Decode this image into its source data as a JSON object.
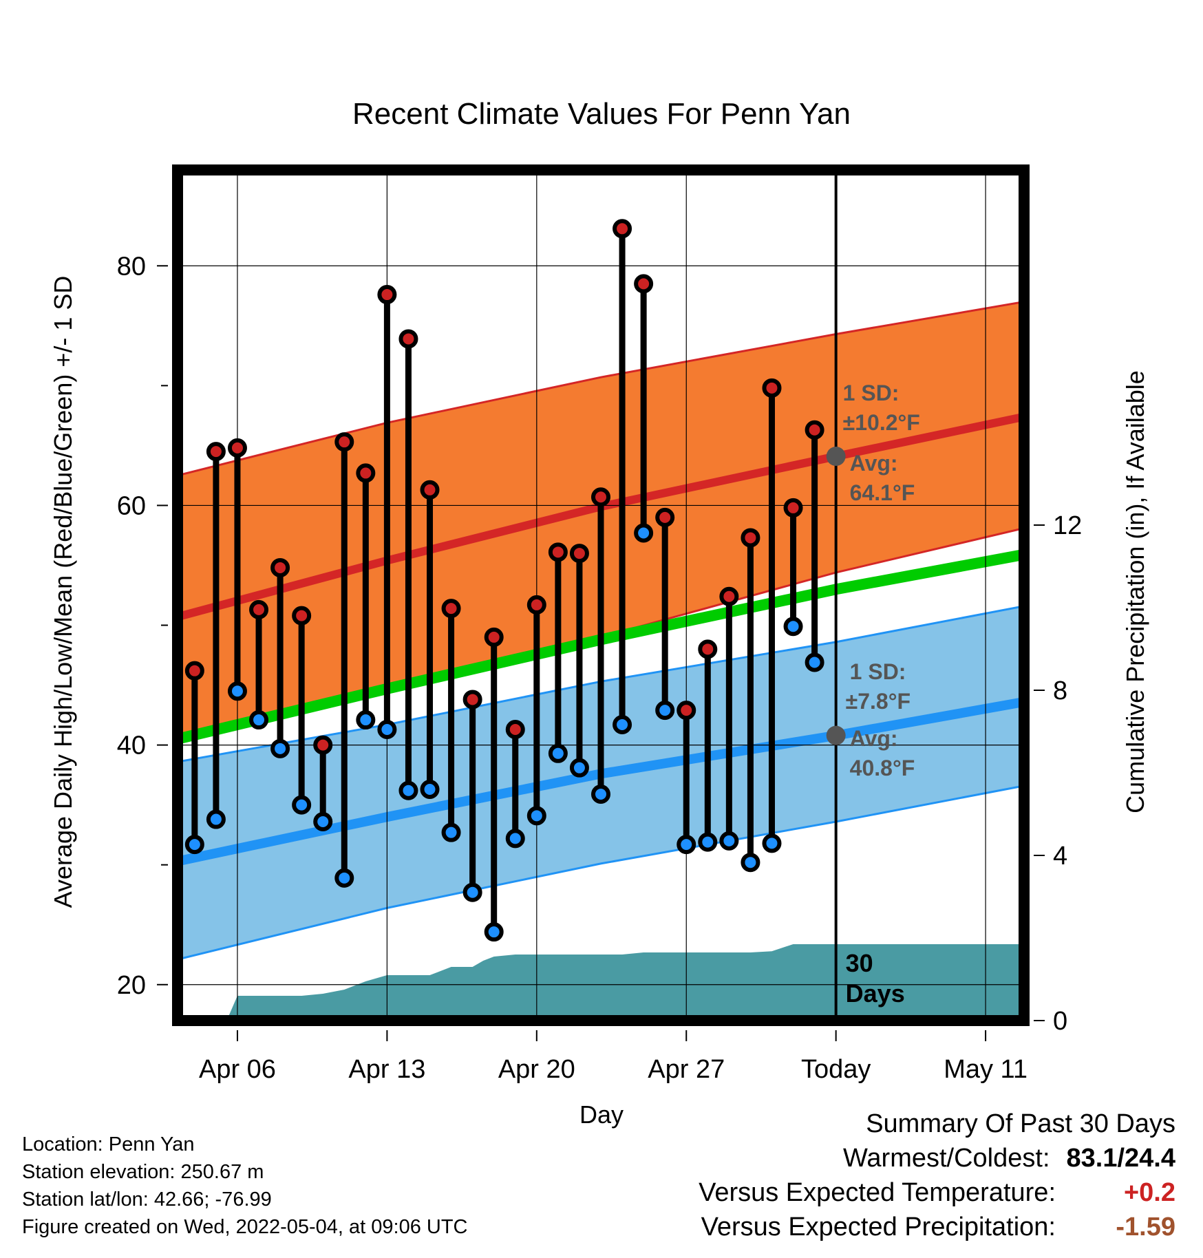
{
  "chart_data": {
    "type": "line",
    "title": "Recent Climate Values For Penn Yan",
    "xlabel": "Day",
    "ylabel": "Average Daily High/Low/Mean (Red/Blue/Green) +/- 1 SD",
    "y2label": "Cumulative Precipitation (in), If Available",
    "ylim": [
      17,
      88
    ],
    "y2lim": [
      0,
      20.6
    ],
    "xlim": [
      0.2,
      39.8
    ],
    "yticks": [
      20,
      40,
      60,
      80
    ],
    "y2ticks": [
      0,
      4,
      8,
      12
    ],
    "xticks": [
      {
        "x": 3,
        "label": "Apr 06"
      },
      {
        "x": 10,
        "label": "Apr 13"
      },
      {
        "x": 17,
        "label": "Apr 20"
      },
      {
        "x": 24,
        "label": "Apr 27"
      },
      {
        "x": 31,
        "label": "Today"
      },
      {
        "x": 38,
        "label": "May 11"
      }
    ],
    "today_x": 31,
    "normal_high": {
      "x": [
        0.2,
        10,
        20,
        31,
        39.8
      ],
      "mean": [
        50.7,
        55.4,
        59.9,
        64.1,
        67.4
      ],
      "upper": [
        62.5,
        66.9,
        70.7,
        74.3,
        77.0
      ],
      "lower": [
        40.4,
        44.6,
        49.0,
        54.4,
        58.1
      ]
    },
    "normal_low": {
      "x": [
        0.2,
        10,
        20,
        31,
        39.8
      ],
      "mean": [
        30.3,
        34.0,
        37.6,
        40.8,
        43.6
      ],
      "upper": [
        38.6,
        41.7,
        45.3,
        48.6,
        51.6
      ],
      "lower": [
        22.1,
        26.4,
        30.1,
        33.6,
        36.6
      ]
    },
    "normal_mean": {
      "x": [
        0.2,
        10,
        20,
        31,
        39.8
      ],
      "values": [
        40.5,
        44.7,
        48.8,
        53.0,
        55.9
      ]
    },
    "daily": [
      {
        "x": 1,
        "high": 46.2,
        "low": 31.7
      },
      {
        "x": 2,
        "high": 64.5,
        "low": 33.8
      },
      {
        "x": 3,
        "high": 64.8,
        "low": 44.5
      },
      {
        "x": 4,
        "high": 51.3,
        "low": 42.1
      },
      {
        "x": 5,
        "high": 54.8,
        "low": 39.7
      },
      {
        "x": 6,
        "high": 50.8,
        "low": 35.0
      },
      {
        "x": 7,
        "high": 40.0,
        "low": 33.6
      },
      {
        "x": 8,
        "high": 65.3,
        "low": 28.9
      },
      {
        "x": 9,
        "high": 62.7,
        "low": 42.1
      },
      {
        "x": 10,
        "high": 77.6,
        "low": 41.3
      },
      {
        "x": 11,
        "high": 73.9,
        "low": 36.2
      },
      {
        "x": 12,
        "high": 61.3,
        "low": 36.3
      },
      {
        "x": 13,
        "high": 51.4,
        "low": 32.7
      },
      {
        "x": 14,
        "high": 43.8,
        "low": 27.7
      },
      {
        "x": 15,
        "high": 49.0,
        "low": 24.4
      },
      {
        "x": 16,
        "high": 41.3,
        "low": 32.2
      },
      {
        "x": 17,
        "high": 51.7,
        "low": 34.1
      },
      {
        "x": 18,
        "high": 56.1,
        "low": 39.3
      },
      {
        "x": 19,
        "high": 56.0,
        "low": 38.1
      },
      {
        "x": 20,
        "high": 60.7,
        "low": 35.9
      },
      {
        "x": 21,
        "high": 83.1,
        "low": 41.7
      },
      {
        "x": 22,
        "high": 78.5,
        "low": 57.7
      },
      {
        "x": 23,
        "high": 59.0,
        "low": 42.9
      },
      {
        "x": 24,
        "high": 42.9,
        "low": 31.7
      },
      {
        "x": 25,
        "high": 48.0,
        "low": 31.9
      },
      {
        "x": 26,
        "high": 52.4,
        "low": 32.0
      },
      {
        "x": 27,
        "high": 57.3,
        "low": 30.2
      },
      {
        "x": 28,
        "high": 69.8,
        "low": 31.8
      },
      {
        "x": 29,
        "high": 59.8,
        "low": 49.9
      },
      {
        "x": 30,
        "high": 66.3,
        "low": 46.9
      }
    ],
    "precipitation": {
      "x": [
        0.2,
        2.5,
        3.0,
        4.0,
        5.0,
        6.0,
        7.0,
        8.0,
        9.0,
        10.0,
        11.0,
        12.0,
        13.0,
        14.0,
        14.5,
        15.0,
        16.0,
        17.0,
        18.0,
        19.0,
        20.0,
        21.0,
        22.0,
        23.0,
        24.0,
        25.0,
        26.0,
        27.0,
        28.0,
        29.0,
        30.0,
        31.0,
        39.8
      ],
      "values": [
        0.0,
        0.0,
        0.6,
        0.6,
        0.6,
        0.6,
        0.65,
        0.75,
        0.95,
        1.1,
        1.1,
        1.1,
        1.3,
        1.3,
        1.45,
        1.55,
        1.6,
        1.6,
        1.6,
        1.6,
        1.6,
        1.6,
        1.65,
        1.65,
        1.65,
        1.65,
        1.65,
        1.65,
        1.68,
        1.85,
        1.85,
        1.85,
        1.85
      ]
    },
    "colors": {
      "high_band": "#f47b30",
      "high_line": "#d42626",
      "low_band": "#85c3e8",
      "low_line": "#2093f5",
      "mean_line": "#00cc00",
      "precip": "#4a9ba3",
      "high_dot": "#cc2222",
      "low_dot": "#1e90ff",
      "avg_dot": "#555555"
    },
    "annotations": {
      "high_sd_label": "1 SD:",
      "high_sd_value": "±10.2°F",
      "high_avg_label": "Avg:",
      "high_avg_value": "64.1°F",
      "high_avg_y": 64.1,
      "low_sd_label": "1 SD:",
      "low_sd_value": "±7.8°F",
      "low_avg_label": "Avg:",
      "low_avg_value": "40.8°F",
      "low_avg_y": 40.8,
      "days_line1": "30",
      "days_line2": "Days"
    }
  },
  "info": {
    "location": "Location: Penn Yan",
    "elevation": "Station elevation: 250.67 m",
    "latlon": "Station lat/lon: 42.66; -76.99",
    "created": "Figure created on Wed, 2022-05-04, at 09:06 UTC"
  },
  "summary": {
    "title": "Summary Of Past 30 Days",
    "warmest_label": "Warmest/Coldest:",
    "warmest_value": "83.1/24.4",
    "temp_label": "Versus Expected Temperature:",
    "temp_value": "+0.2",
    "temp_color": "#cc2222",
    "precip_label": "Versus Expected Precipitation:",
    "precip_value": "-1.59",
    "precip_color": "#a0522d"
  }
}
